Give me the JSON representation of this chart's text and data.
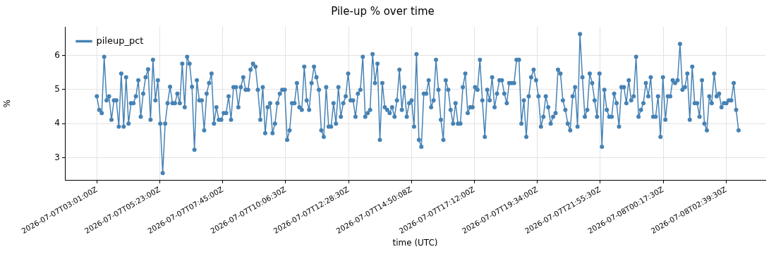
{
  "chart_data": {
    "type": "line",
    "title": "Pile-up % over time",
    "xlabel": "time (UTC)",
    "ylabel": "%",
    "x": [
      "2026-07-07T03:01:00",
      "2026-07-07T03:06:30",
      "2026-07-07T03:12:00",
      "2026-07-07T03:17:30",
      "2026-07-07T03:23:00",
      "2026-07-07T03:28:30",
      "2026-07-07T03:34:00",
      "2026-07-07T03:39:30",
      "2026-07-07T03:45:00",
      "2026-07-07T03:50:30",
      "2026-07-07T03:56:00",
      "2026-07-07T04:01:30",
      "2026-07-07T04:07:00",
      "2026-07-07T04:12:30",
      "2026-07-07T04:18:00",
      "2026-07-07T04:23:30",
      "2026-07-07T04:29:00",
      "2026-07-07T04:34:30",
      "2026-07-07T04:40:00",
      "2026-07-07T04:45:30",
      "2026-07-07T04:51:00",
      "2026-07-07T04:56:30",
      "2026-07-07T05:02:00",
      "2026-07-07T05:07:30",
      "2026-07-07T05:13:00",
      "2026-07-07T05:18:30",
      "2026-07-07T05:24:00",
      "2026-07-07T05:29:30",
      "2026-07-07T05:35:00",
      "2026-07-07T05:40:30",
      "2026-07-07T05:46:00",
      "2026-07-07T05:51:30",
      "2026-07-07T05:57:00",
      "2026-07-07T06:02:30",
      "2026-07-07T06:08:00",
      "2026-07-07T06:13:30",
      "2026-07-07T06:19:00",
      "2026-07-07T06:24:30",
      "2026-07-07T06:30:00",
      "2026-07-07T06:35:30",
      "2026-07-07T06:41:00",
      "2026-07-07T06:46:30",
      "2026-07-07T06:52:00",
      "2026-07-07T06:57:30",
      "2026-07-07T07:03:00",
      "2026-07-07T07:08:30",
      "2026-07-07T07:14:00",
      "2026-07-07T07:19:30",
      "2026-07-07T07:25:00",
      "2026-07-07T07:30:30",
      "2026-07-07T07:36:00",
      "2026-07-07T07:41:30",
      "2026-07-07T07:47:00",
      "2026-07-07T07:52:30",
      "2026-07-07T07:58:00",
      "2026-07-07T08:03:30",
      "2026-07-07T08:09:00",
      "2026-07-07T08:14:30",
      "2026-07-07T08:20:00",
      "2026-07-07T08:25:30",
      "2026-07-07T08:31:00",
      "2026-07-07T08:36:30",
      "2026-07-07T08:42:00",
      "2026-07-07T08:47:30",
      "2026-07-07T08:53:00",
      "2026-07-07T08:58:30",
      "2026-07-07T09:04:00",
      "2026-07-07T09:09:30",
      "2026-07-07T09:15:00",
      "2026-07-07T09:20:30",
      "2026-07-07T09:26:00",
      "2026-07-07T09:31:30",
      "2026-07-07T09:37:00",
      "2026-07-07T09:42:30",
      "2026-07-07T09:48:00",
      "2026-07-07T09:53:30",
      "2026-07-07T09:59:00",
      "2026-07-07T10:04:30",
      "2026-07-07T10:10:00",
      "2026-07-07T10:15:30",
      "2026-07-07T10:21:00",
      "2026-07-07T10:26:30",
      "2026-07-07T10:32:00",
      "2026-07-07T10:37:30",
      "2026-07-07T10:43:00",
      "2026-07-07T10:48:30",
      "2026-07-07T10:54:00",
      "2026-07-07T10:59:30",
      "2026-07-07T11:05:00",
      "2026-07-07T11:10:30",
      "2026-07-07T11:16:00",
      "2026-07-07T11:21:30",
      "2026-07-07T11:27:00",
      "2026-07-07T11:32:30",
      "2026-07-07T11:38:00",
      "2026-07-07T11:43:30",
      "2026-07-07T11:49:00",
      "2026-07-07T11:54:30",
      "2026-07-07T12:00:00",
      "2026-07-07T12:05:30",
      "2026-07-07T12:11:00",
      "2026-07-07T12:16:30",
      "2026-07-07T12:22:00",
      "2026-07-07T12:27:30",
      "2026-07-07T12:33:00",
      "2026-07-07T12:38:30",
      "2026-07-07T12:44:00",
      "2026-07-07T12:49:30",
      "2026-07-07T12:55:00",
      "2026-07-07T13:00:30",
      "2026-07-07T13:06:00",
      "2026-07-07T13:11:30",
      "2026-07-07T13:17:00",
      "2026-07-07T13:22:30",
      "2026-07-07T13:28:00",
      "2026-07-07T13:33:30",
      "2026-07-07T13:39:00",
      "2026-07-07T13:44:30",
      "2026-07-07T13:50:00",
      "2026-07-07T13:55:30",
      "2026-07-07T14:01:00",
      "2026-07-07T14:06:30",
      "2026-07-07T14:12:00",
      "2026-07-07T14:17:30",
      "2026-07-07T14:23:00",
      "2026-07-07T14:28:30",
      "2026-07-07T14:34:00",
      "2026-07-07T14:39:30",
      "2026-07-07T14:45:00",
      "2026-07-07T14:50:30",
      "2026-07-07T14:56:00",
      "2026-07-07T15:01:30",
      "2026-07-07T15:07:00",
      "2026-07-07T15:12:30",
      "2026-07-07T15:18:00",
      "2026-07-07T15:23:30",
      "2026-07-07T15:29:00",
      "2026-07-07T15:34:30",
      "2026-07-07T15:40:00",
      "2026-07-07T15:45:30",
      "2026-07-07T15:51:00",
      "2026-07-07T15:56:30",
      "2026-07-07T16:02:00",
      "2026-07-07T16:07:30",
      "2026-07-07T16:13:00",
      "2026-07-07T16:18:30",
      "2026-07-07T16:24:00",
      "2026-07-07T16:29:30",
      "2026-07-07T16:35:00",
      "2026-07-07T16:40:30",
      "2026-07-07T16:46:00",
      "2026-07-07T16:51:30",
      "2026-07-07T16:57:00",
      "2026-07-07T17:02:30",
      "2026-07-07T17:08:00",
      "2026-07-07T17:13:30",
      "2026-07-07T17:19:00",
      "2026-07-07T17:24:30",
      "2026-07-07T17:30:00",
      "2026-07-07T17:35:30",
      "2026-07-07T17:41:00",
      "2026-07-07T17:46:30",
      "2026-07-07T17:52:00",
      "2026-07-07T17:57:30",
      "2026-07-07T18:03:00",
      "2026-07-07T18:08:30",
      "2026-07-07T18:14:00",
      "2026-07-07T18:19:30",
      "2026-07-07T18:25:00",
      "2026-07-07T18:30:30",
      "2026-07-07T18:36:00",
      "2026-07-07T18:41:30",
      "2026-07-07T18:47:00",
      "2026-07-07T18:52:30",
      "2026-07-07T18:58:00",
      "2026-07-07T19:03:30",
      "2026-07-07T19:09:00",
      "2026-07-07T19:14:30",
      "2026-07-07T19:20:00",
      "2026-07-07T19:25:30",
      "2026-07-07T19:31:00",
      "2026-07-07T19:36:30",
      "2026-07-07T19:42:00",
      "2026-07-07T19:47:30",
      "2026-07-07T19:53:00",
      "2026-07-07T19:58:30",
      "2026-07-07T20:04:00",
      "2026-07-07T20:09:30",
      "2026-07-07T20:15:00",
      "2026-07-07T20:20:30",
      "2026-07-07T20:26:00",
      "2026-07-07T20:31:30",
      "2026-07-07T20:37:00",
      "2026-07-07T20:42:30",
      "2026-07-07T20:48:00",
      "2026-07-07T20:53:30",
      "2026-07-07T20:59:00",
      "2026-07-07T21:04:30",
      "2026-07-07T21:10:00",
      "2026-07-07T21:15:30",
      "2026-07-07T21:21:00",
      "2026-07-07T21:26:30",
      "2026-07-07T21:32:00",
      "2026-07-07T21:37:30",
      "2026-07-07T21:43:00",
      "2026-07-07T21:48:30",
      "2026-07-07T21:54:00",
      "2026-07-07T21:59:30",
      "2026-07-07T22:05:00",
      "2026-07-07T22:10:30",
      "2026-07-07T22:16:00",
      "2026-07-07T22:21:30",
      "2026-07-07T22:27:00",
      "2026-07-07T22:32:30",
      "2026-07-07T22:38:00",
      "2026-07-07T22:43:30",
      "2026-07-07T22:49:00",
      "2026-07-07T22:54:30",
      "2026-07-07T23:00:00",
      "2026-07-07T23:05:30",
      "2026-07-07T23:11:00",
      "2026-07-07T23:16:30",
      "2026-07-07T23:22:00",
      "2026-07-07T23:27:30",
      "2026-07-07T23:33:00",
      "2026-07-07T23:38:30",
      "2026-07-07T23:44:00",
      "2026-07-07T23:49:30",
      "2026-07-07T23:55:00",
      "2026-07-08T00:00:30",
      "2026-07-08T00:06:00",
      "2026-07-08T00:11:30",
      "2026-07-08T00:17:00",
      "2026-07-08T00:22:30",
      "2026-07-08T00:28:00",
      "2026-07-08T00:33:30",
      "2026-07-08T00:39:00",
      "2026-07-08T00:44:30",
      "2026-07-08T00:50:00",
      "2026-07-08T00:55:30",
      "2026-07-08T01:01:00",
      "2026-07-08T01:06:30",
      "2026-07-08T01:12:00",
      "2026-07-08T01:17:30",
      "2026-07-08T01:23:00",
      "2026-07-08T01:28:30",
      "2026-07-08T01:34:00",
      "2026-07-08T01:39:30",
      "2026-07-08T01:45:00",
      "2026-07-08T01:50:30",
      "2026-07-08T01:56:00",
      "2026-07-08T02:01:30",
      "2026-07-08T02:07:00",
      "2026-07-08T02:12:30",
      "2026-07-08T02:18:00",
      "2026-07-08T02:23:30",
      "2026-07-08T02:29:00",
      "2026-07-08T02:34:30",
      "2026-07-08T02:40:00",
      "2026-07-08T02:45:30",
      "2026-07-08T02:51:00",
      "2026-07-08T02:56:30",
      "2026-07-08T03:02:00",
      "2026-07-08T03:07:30"
    ],
    "series": [
      {
        "name": "pileup_pct",
        "color": "#4682b4",
        "values": [
          4.8,
          4.4,
          4.31,
          5.96,
          4.68,
          4.8,
          4.11,
          4.68,
          4.68,
          3.91,
          5.47,
          3.91,
          5.36,
          4.0,
          4.6,
          4.6,
          4.8,
          5.27,
          4.2,
          4.88,
          5.36,
          5.59,
          4.11,
          5.87,
          4.68,
          5.27,
          4.0,
          2.55,
          4.0,
          4.6,
          5.08,
          4.6,
          4.6,
          4.88,
          4.6,
          5.76,
          4.48,
          5.96,
          5.76,
          5.08,
          3.23,
          5.27,
          4.68,
          4.68,
          3.8,
          4.88,
          5.19,
          5.47,
          4.0,
          4.48,
          4.11,
          4.11,
          4.31,
          4.31,
          4.8,
          4.11,
          5.07,
          5.07,
          4.48,
          5.07,
          5.36,
          4.99,
          4.99,
          5.58,
          5.76,
          5.67,
          4.99,
          4.11,
          5.07,
          3.72,
          4.48,
          4.6,
          3.72,
          4.0,
          4.6,
          4.88,
          4.99,
          4.99,
          3.52,
          3.8,
          4.6,
          4.6,
          5.19,
          4.48,
          4.4,
          5.67,
          4.68,
          4.4,
          5.19,
          5.67,
          5.36,
          4.99,
          3.8,
          3.61,
          5.07,
          3.91,
          3.91,
          4.6,
          4.0,
          5.07,
          4.2,
          4.6,
          4.8,
          5.47,
          4.68,
          4.68,
          4.2,
          4.88,
          4.99,
          5.96,
          4.2,
          4.31,
          4.4,
          6.04,
          5.19,
          5.76,
          3.52,
          5.19,
          4.48,
          4.4,
          4.31,
          4.48,
          4.2,
          4.68,
          5.58,
          4.4,
          5.07,
          4.2,
          4.6,
          4.68,
          3.91,
          6.04,
          3.52,
          3.32,
          4.88,
          4.88,
          5.27,
          4.48,
          4.68,
          5.87,
          4.99,
          4.11,
          3.52,
          5.27,
          4.99,
          4.4,
          4.0,
          4.6,
          4.0,
          4.0,
          5.07,
          5.47,
          4.31,
          4.48,
          4.48,
          5.07,
          4.99,
          5.87,
          4.68,
          3.61,
          4.99,
          4.68,
          5.36,
          4.48,
          4.88,
          5.27,
          5.27,
          4.88,
          4.6,
          5.19,
          5.19,
          5.19,
          5.87,
          5.87,
          4.0,
          4.68,
          3.61,
          4.8,
          5.36,
          5.58,
          5.27,
          4.8,
          3.91,
          4.2,
          4.8,
          4.48,
          4.0,
          4.2,
          4.31,
          5.58,
          5.47,
          4.68,
          4.4,
          4.0,
          3.8,
          4.8,
          5.07,
          3.91,
          6.63,
          5.36,
          4.2,
          4.4,
          5.47,
          5.19,
          4.68,
          4.2,
          5.47,
          3.32,
          4.99,
          4.4,
          4.2,
          4.2,
          4.88,
          4.6,
          3.91,
          5.07,
          5.07,
          4.6,
          5.27,
          4.68,
          4.8,
          5.96,
          4.2,
          4.4,
          4.6,
          5.19,
          4.8,
          5.36,
          4.2,
          4.2,
          4.8,
          3.61,
          5.36,
          4.11,
          4.8,
          4.8,
          5.27,
          5.19,
          5.27,
          6.34,
          4.99,
          5.07,
          5.47,
          4.11,
          5.67,
          4.6,
          4.6,
          4.2,
          5.27,
          4.0,
          3.8,
          4.8,
          4.6,
          5.47,
          4.8,
          4.88,
          4.48,
          4.6,
          4.6,
          4.68,
          4.68,
          5.19,
          4.4,
          3.8
        ]
      }
    ],
    "xlim": [
      "2026-07-07T01:49",
      "2026-07-08T04:08"
    ],
    "xticks": [
      {
        "value": "2026-07-07T03:01:00",
        "label": "2026-07-07T03:01:00Z"
      },
      {
        "value": "2026-07-07T05:23:00",
        "label": "2026-07-07T05:23:00Z"
      },
      {
        "value": "2026-07-07T07:45:00",
        "label": "2026-07-07T07:45:00Z"
      },
      {
        "value": "2026-07-07T10:06:30",
        "label": "2026-07-07T10:06:30Z"
      },
      {
        "value": "2026-07-07T12:28:30",
        "label": "2026-07-07T12:28:30Z"
      },
      {
        "value": "2026-07-07T14:50:08",
        "label": "2026-07-07T14:50:08Z"
      },
      {
        "value": "2026-07-07T17:12:00",
        "label": "2026-07-07T17:12:00Z"
      },
      {
        "value": "2026-07-07T19:34:00",
        "label": "2026-07-07T19:34:00Z"
      },
      {
        "value": "2026-07-07T21:55:30",
        "label": "2026-07-07T21:55:30Z"
      },
      {
        "value": "2026-07-08T00:17:30",
        "label": "2026-07-08T00:17:30Z"
      },
      {
        "value": "2026-07-08T02:39:30",
        "label": "2026-07-08T02:39:30Z"
      }
    ],
    "ylim": [
      2.33,
      6.84
    ],
    "yticks": [
      3,
      4,
      5,
      6
    ],
    "grid": true,
    "legend": "top left",
    "marker": "circle",
    "line_style": "solid"
  }
}
